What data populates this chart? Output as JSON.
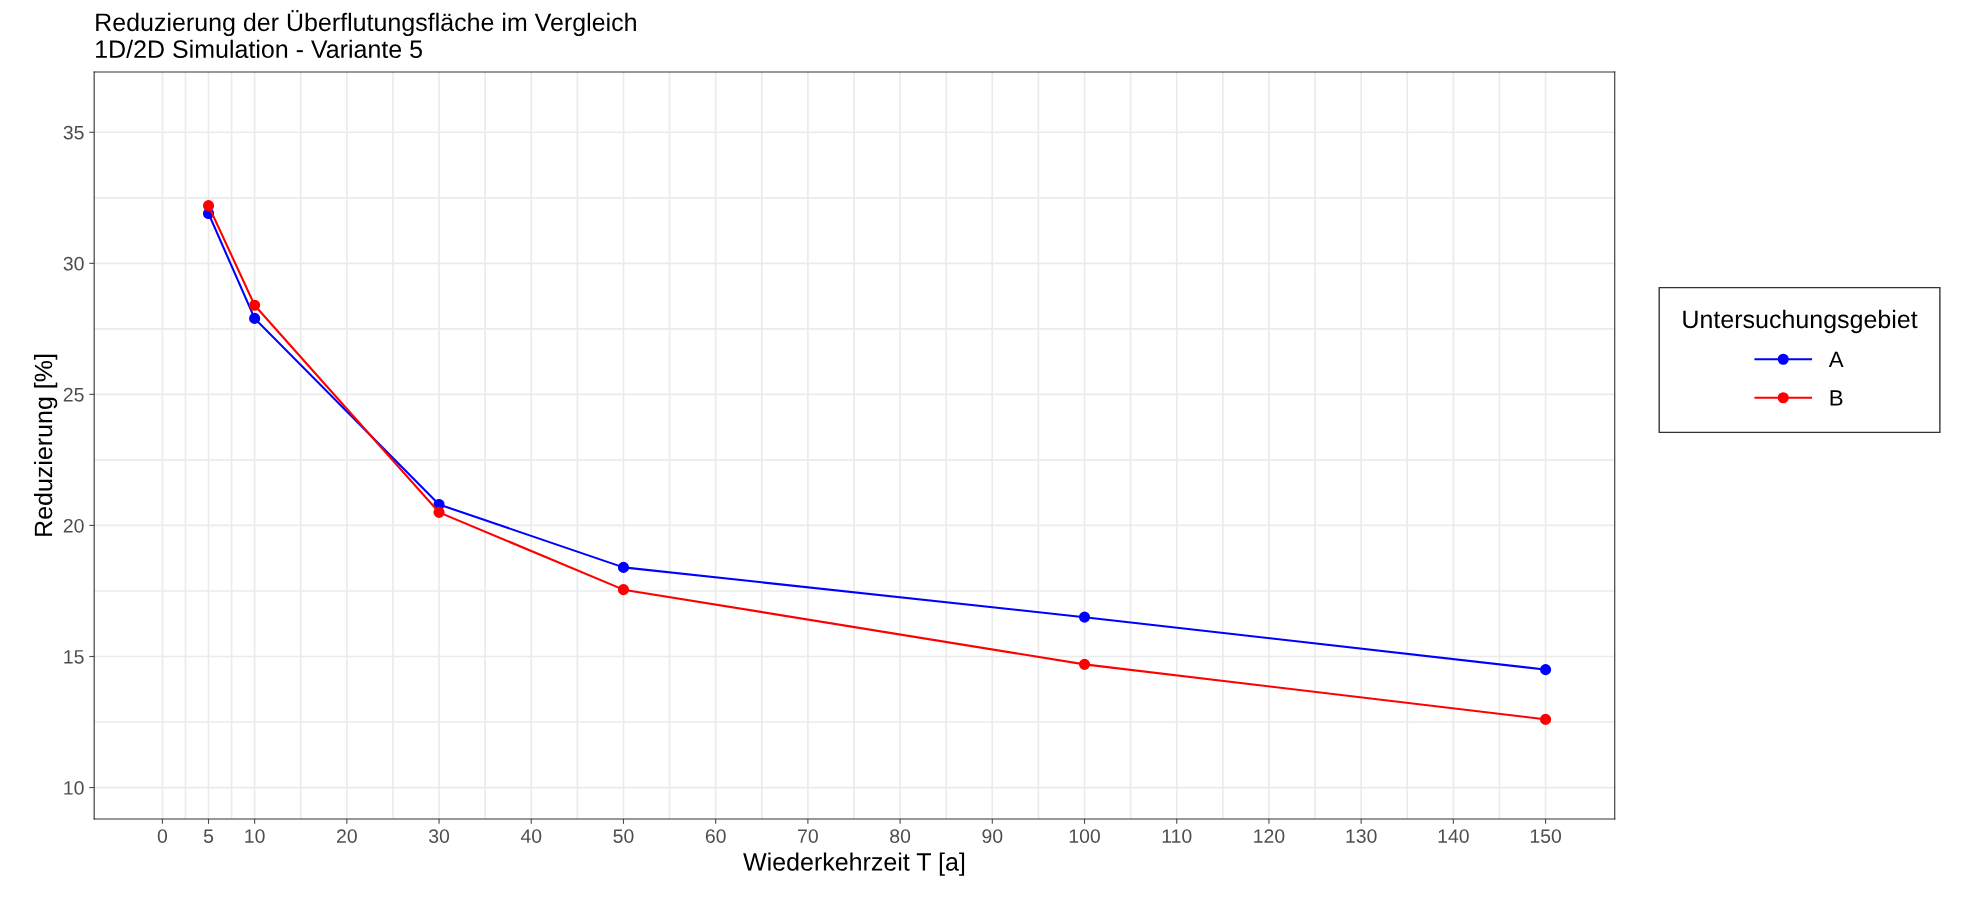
{
  "chart_data": {
    "type": "line",
    "title": "Reduzierung der Überflutungsfläche im Vergleich\n1D/2D Simulation - Variante 5",
    "xlabel": "Wiederkehrzeit T [a]",
    "ylabel": "Reduzierung [%]",
    "legend_title": "Untersuchungsgebiet",
    "x": [
      5,
      10,
      30,
      50,
      100,
      150
    ],
    "series": [
      {
        "name": "A",
        "color": "#0000ff",
        "values": [
          31.9,
          27.9,
          20.8,
          18.4,
          16.5,
          14.5
        ]
      },
      {
        "name": "B",
        "color": "#ff0000",
        "values": [
          32.2,
          28.4,
          20.5,
          17.55,
          14.7,
          12.6
        ]
      }
    ],
    "xlim": [
      -7.4,
      157.5
    ],
    "ylim": [
      8.8,
      37.3
    ],
    "xticks": [
      0,
      5,
      10,
      20,
      30,
      40,
      50,
      60,
      70,
      80,
      90,
      100,
      110,
      120,
      130,
      140,
      150
    ],
    "yticks": [
      10,
      15,
      20,
      25,
      30,
      35
    ],
    "grid": true,
    "legend": "right",
    "marker": "circle",
    "line_style": "solid"
  }
}
